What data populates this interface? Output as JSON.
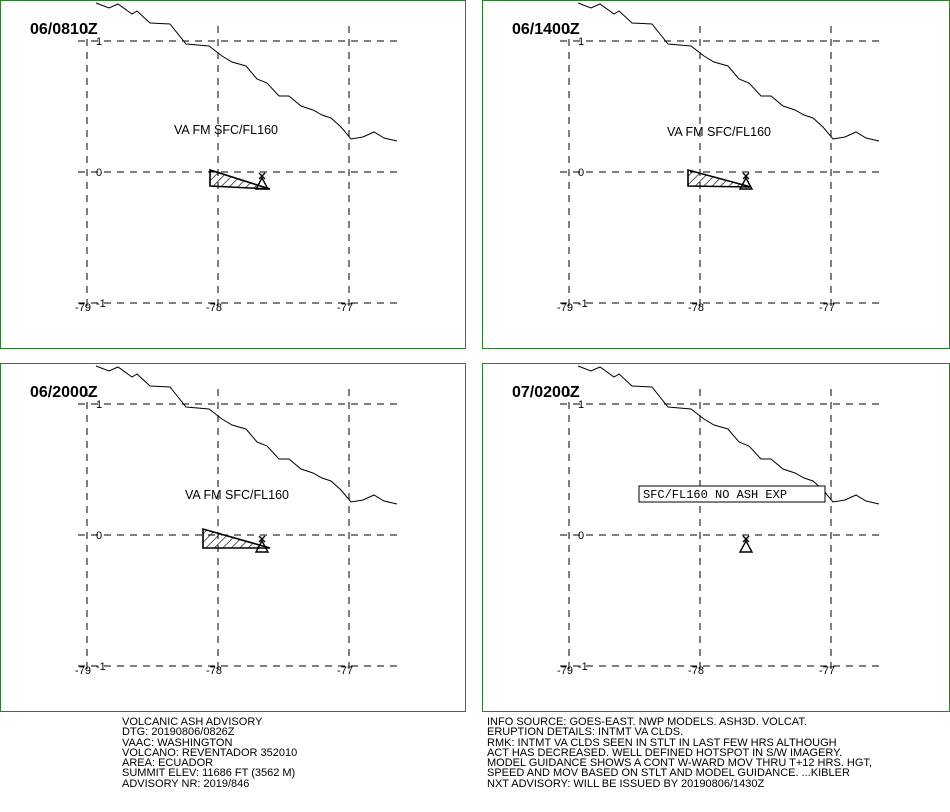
{
  "panels": [
    {
      "id": "p1",
      "time_label": "06/0810Z",
      "label": "VA FM SFC/FL160",
      "label_boxed": false,
      "has_plume": true,
      "plume_variant": "a"
    },
    {
      "id": "p2",
      "time_label": "06/1400Z",
      "label": "VA FM SFC/FL160",
      "label_boxed": false,
      "has_plume": true,
      "plume_variant": "b"
    },
    {
      "id": "p3",
      "time_label": "06/2000Z",
      "label": "VA FM SFC/FL160",
      "label_boxed": false,
      "has_plume": true,
      "plume_variant": "c"
    },
    {
      "id": "p4",
      "time_label": "07/0200Z",
      "label": "SFC/FL160 NO ASH EXP",
      "label_boxed": true,
      "has_plume": false,
      "plume_variant": ""
    }
  ],
  "axes": {
    "lat_labels": [
      "1",
      "0",
      "-1"
    ],
    "lon_labels": [
      "-79",
      "-78",
      "-77"
    ]
  },
  "colors": {
    "frame": "#2e7d2e",
    "lines": "#000000"
  },
  "advisory_left": [
    "VOLCANIC ASH ADVISORY",
    "DTG: 20190806/0826Z",
    "VAAC: WASHINGTON",
    "VOLCANO: REVENTADOR 352010",
    "AREA: ECUADOR",
    "SUMMIT ELEV: 11686 FT (3562 M)",
    "ADVISORY NR: 2019/846"
  ],
  "advisory_right": [
    "INFO SOURCE: GOES-EAST. NWP MODELS. ASH3D. VOLCAT.",
    "ERUPTION DETAILS: INTMT VA CLDS.",
    "RMK: INTMT VA CLDS SEEN IN STLT IN LAST FEW HRS ALTHOUGH",
    "ACT HAS DECREASED. WELL DEFINED HOTSPOT IN S/W IMAGERY.",
    "MODEL GUIDANCE SHOWS A CONT W-WARD MOV THRU T+12 HRS. HGT,",
    "SPEED AND MOV BASED ON STLT AND MODEL GUIDANCE. ...KIBLER",
    "NXT ADVISORY: WILL BE ISSUED BY 20190806/1430Z"
  ]
}
